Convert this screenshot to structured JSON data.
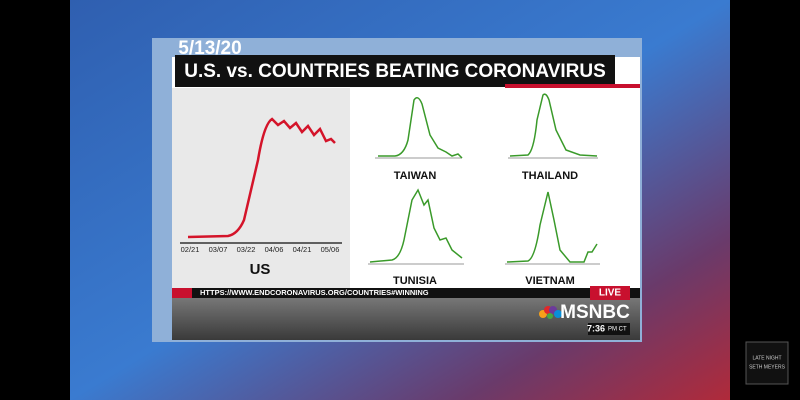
{
  "header": {
    "date": "5/13/20",
    "title": "U.S. vs. COUNTRIES BEATING CORONAVIRUS"
  },
  "main_chart": {
    "label": "US",
    "x_labels": [
      "02/21",
      "03/07",
      "03/22",
      "04/06",
      "04/21",
      "05/06"
    ]
  },
  "small_charts": [
    {
      "label": "TAIWAN"
    },
    {
      "label": "THAILAND"
    },
    {
      "label": "TUNISIA"
    },
    {
      "label": "VIETNAM"
    }
  ],
  "footer": {
    "url": "HTTPS://WWW.ENDCORONAVIRUS.ORG/COUNTRIES#WINNING",
    "live": "LIVE",
    "network": "MSNBC",
    "time": "7:36",
    "time_suffix": "PM CT"
  },
  "corner_logo": {
    "line1": "LATE NIGHT",
    "line2": "SETH MEYERS"
  }
}
